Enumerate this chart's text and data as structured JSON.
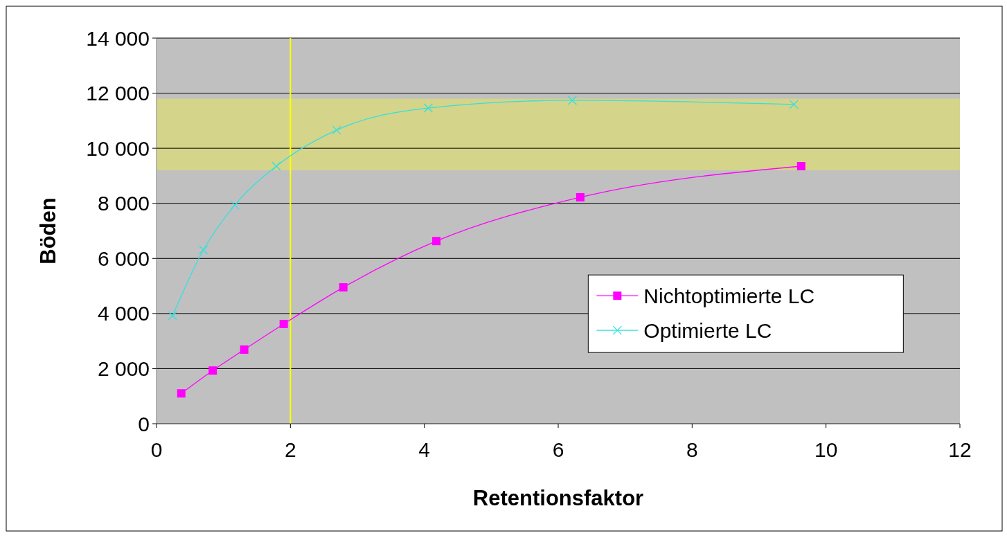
{
  "chart_data": {
    "type": "line",
    "xlabel": "Retentionsfaktor",
    "ylabel": "Böden",
    "xlim": [
      0,
      12
    ],
    "xticks": [
      0,
      2,
      4,
      6,
      8,
      10,
      12
    ],
    "ylim": [
      0,
      14000
    ],
    "yticks": [
      {
        "value": 0,
        "label": "0"
      },
      {
        "value": 2000,
        "label": "2 000"
      },
      {
        "value": 4000,
        "label": "4 000"
      },
      {
        "value": 6000,
        "label": "6 000"
      },
      {
        "value": 8000,
        "label": "8 000"
      },
      {
        "value": 10000,
        "label": "10 000"
      },
      {
        "value": 12000,
        "label": "12 000"
      },
      {
        "value": 14000,
        "label": "14 000"
      }
    ],
    "grid": "y",
    "legend": "right",
    "series": [
      {
        "name": "Nichtoptimierte LC",
        "color": "#ff00ff",
        "marker": "square",
        "x": [
          0.37,
          0.84,
          1.31,
          1.9,
          2.79,
          4.18,
          6.33,
          9.63
        ],
        "values": [
          1100,
          1930,
          2690,
          3620,
          4950,
          6630,
          8220,
          9350
        ]
      },
      {
        "name": "Optimierte LC",
        "color": "#33e0e0",
        "marker": "cross",
        "x": [
          0.24,
          0.7,
          1.17,
          1.79,
          2.69,
          4.06,
          6.21,
          9.52
        ],
        "values": [
          3920,
          6310,
          7940,
          9350,
          10660,
          11460,
          11740,
          11590
        ]
      }
    ],
    "ref_lines": [
      {
        "axis": "x",
        "value": 2,
        "color": "#ffff00"
      }
    ],
    "bands": [
      {
        "axis": "y",
        "from": 9200,
        "to": 11800,
        "color": "#d4d48a"
      }
    ]
  }
}
